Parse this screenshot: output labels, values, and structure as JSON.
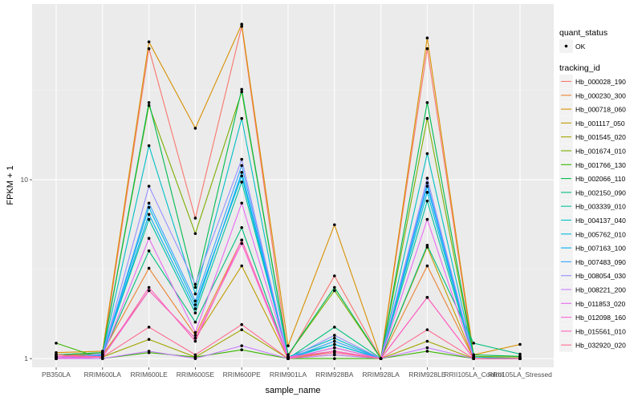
{
  "chart_data": {
    "type": "line",
    "title": "",
    "xlabel": "sample_name",
    "ylabel": "FPKM + 1",
    "yscale": "log10",
    "ylim": [
      0.894,
      96
    ],
    "yticks": [
      {
        "value": 1,
        "label": "1"
      },
      {
        "value": 10,
        "label": "10"
      }
    ],
    "grid": true,
    "legend_placement": "right",
    "categories": [
      "PB350LA",
      "RRIM600LA",
      "RRIM600LE",
      "RRIM600SE",
      "RRIM600PE",
      "RRIM901LA",
      "RRIM928BA",
      "RRIM928LA",
      "RRIM928LE",
      "RRII105LA_Control",
      "RRII105LA_Stressed"
    ],
    "shape_legend": {
      "title": "quant_status",
      "items": [
        "OK"
      ]
    },
    "color_legend_title": "tracking_id",
    "series": [
      {
        "name": "Hb_000028_190",
        "color": "#F8766D",
        "values": [
          1.05,
          1.05,
          54,
          6.1,
          72,
          1.02,
          2.9,
          1.0,
          54,
          1.02,
          1.0
        ]
      },
      {
        "name": "Hb_000230_300",
        "color": "#EA8331",
        "values": [
          1.02,
          1.08,
          3.2,
          1.35,
          4.6,
          1.0,
          1.1,
          1.0,
          3.3,
          1.0,
          1.0
        ]
      },
      {
        "name": "Hb_000718_060",
        "color": "#D89000",
        "values": [
          1.08,
          1.1,
          59,
          19.4,
          74,
          1.18,
          5.6,
          1.0,
          62,
          1.05,
          1.2
        ]
      },
      {
        "name": "Hb_001117_050",
        "color": "#C09B00",
        "values": [
          1.0,
          1.05,
          2.4,
          1.3,
          3.3,
          1.0,
          1.1,
          1.0,
          4.2,
          1.0,
          1.0
        ]
      },
      {
        "name": "Hb_001545_020",
        "color": "#A3A500",
        "values": [
          1.0,
          1.02,
          1.28,
          1.02,
          1.45,
          1.0,
          1.05,
          1.0,
          1.25,
          1.0,
          1.0
        ]
      },
      {
        "name": "Hb_001674_010",
        "color": "#7CAE00",
        "values": [
          1.05,
          1.08,
          26,
          5.0,
          31,
          1.05,
          2.4,
          1.0,
          22,
          1.03,
          1.02
        ]
      },
      {
        "name": "Hb_001766_130",
        "color": "#39B600",
        "values": [
          1.22,
          1.0,
          1.08,
          1.02,
          1.12,
          1.0,
          1.0,
          1.0,
          1.1,
          1.0,
          1.0
        ]
      },
      {
        "name": "Hb_002066_110",
        "color": "#00BB4E",
        "values": [
          1.05,
          1.08,
          27,
          2.5,
          32,
          1.05,
          2.5,
          1.0,
          27,
          1.05,
          1.03
        ]
      },
      {
        "name": "Hb_002150_090",
        "color": "#00BF7D",
        "values": [
          1.0,
          1.05,
          4.0,
          1.6,
          5.4,
          1.0,
          1.5,
          1.0,
          4.3,
          1.22,
          1.06
        ]
      },
      {
        "name": "Hb_003339_010",
        "color": "#00C1A3",
        "values": [
          1.02,
          1.05,
          6.0,
          1.8,
          9.7,
          1.02,
          1.2,
          1.0,
          7.6,
          1.0,
          1.0
        ]
      },
      {
        "name": "Hb_004137_040",
        "color": "#00BFC4",
        "values": [
          1.02,
          1.06,
          15.5,
          2.3,
          22,
          1.02,
          1.3,
          1.0,
          14,
          1.02,
          1.0
        ]
      },
      {
        "name": "Hb_005762_010",
        "color": "#00BAE0",
        "values": [
          1.0,
          1.05,
          7.0,
          2.0,
          10.5,
          1.0,
          1.2,
          1.0,
          8.5,
          1.0,
          1.0
        ]
      },
      {
        "name": "Hb_007163_100",
        "color": "#00B0F6",
        "values": [
          1.0,
          1.04,
          6.4,
          1.9,
          11,
          1.0,
          1.15,
          1.0,
          9.2,
          1.0,
          1.0
        ]
      },
      {
        "name": "Hb_007483_090",
        "color": "#35A2FF",
        "values": [
          1.0,
          1.05,
          7.4,
          2.1,
          12,
          1.0,
          1.25,
          1.0,
          9.6,
          1.0,
          1.0
        ]
      },
      {
        "name": "Hb_008054_030",
        "color": "#9590FF",
        "values": [
          1.0,
          1.06,
          9.2,
          2.6,
          13,
          1.0,
          1.35,
          1.0,
          10.2,
          1.0,
          1.0
        ]
      },
      {
        "name": "Hb_008221_200",
        "color": "#C77CFF",
        "values": [
          1.0,
          1.0,
          1.1,
          1.0,
          1.18,
          1.0,
          1.05,
          1.0,
          1.15,
          1.0,
          1.0
        ]
      },
      {
        "name": "Hb_011853_020",
        "color": "#E76BF3",
        "values": [
          1.02,
          1.03,
          4.7,
          1.4,
          7.4,
          1.02,
          1.1,
          1.0,
          6.0,
          1.0,
          1.0
        ]
      },
      {
        "name": "Hb_012098_160",
        "color": "#FA62DB",
        "values": [
          1.0,
          1.02,
          2.4,
          1.3,
          4.4,
          1.0,
          1.15,
          1.0,
          2.2,
          1.0,
          1.0
        ]
      },
      {
        "name": "Hb_015561_010",
        "color": "#FF62BC",
        "values": [
          1.03,
          1.02,
          2.5,
          1.25,
          4.6,
          1.02,
          1.1,
          1.0,
          2.2,
          1.0,
          1.0
        ]
      },
      {
        "name": "Hb_032920_020",
        "color": "#FF6C91",
        "values": [
          1.05,
          1.02,
          1.5,
          1.05,
          1.55,
          1.0,
          1.08,
          1.0,
          1.45,
          1.0,
          1.0
        ]
      }
    ]
  }
}
